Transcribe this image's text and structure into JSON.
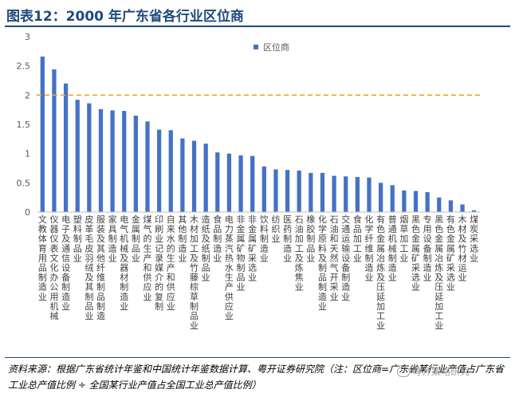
{
  "figure": {
    "title": "图表12：2000 年广东省各行业区位商",
    "source_note": "资料来源：根据广东省统计年鉴和中国统计年鉴数据计算、粤开证券研究院（注：区位商=广东省某行业产值占广东省工业总产值比例 ÷ 全国某行业产值占全国工业总产值比例）",
    "watermark": "粤开策略研究"
  },
  "colors": {
    "bar": "#4472c4",
    "reference_line": "#f0a030",
    "title": "#1f497d",
    "axis_text": "#595959"
  },
  "icons": {
    "watermark": "wechat-icon"
  },
  "chart_data": {
    "type": "bar",
    "title": "",
    "xlabel": "",
    "ylabel": "",
    "ylim": [
      0,
      3
    ],
    "yticks": [
      "0",
      "0.5",
      "1",
      "1.5",
      "2",
      "2.5",
      "3"
    ],
    "grid": false,
    "legend": "top-right",
    "reference_line": {
      "y": 2,
      "style": "dashed"
    },
    "categories": [
      "文教体育用品制造业",
      "仪器仪表文化办公用机械",
      "电子及通信设备制造业",
      "塑料制品业",
      "皮革毛皮羽绒及其制品业",
      "服装及其他纤维制品制造",
      "家具制造业",
      "电气机械及器材制造业",
      "金属制品业",
      "煤气的生产和供应业",
      "印刷业记录媒介的复制",
      "自来水的生产和供应业",
      "其他制造业",
      "木材加工及竹藤棕草制品业",
      "造纸及纸制品业",
      "食品制造业",
      "电力蒸汽热水生产供应业",
      "非金属矿物制品业",
      "非金属矿采选业",
      "饮料制造业",
      "纺织业",
      "医药制造业",
      "石油加工及炼焦业",
      "橡胶制品业",
      "化学原料及制品制造业",
      "石油和天然气开采业",
      "交通运输设备制造业",
      "食品加工业",
      "化学纤维制造业",
      "有色金属冶炼及压延加工业",
      "普通机械制造业",
      "烟草加工业",
      "黑色金属矿采选业",
      "专用设备制造业",
      "黑色金属冶炼及压延加工业",
      "有色金属矿采选业",
      "木材及竹材运业",
      "煤炭采选业"
    ],
    "series": [
      {
        "name": "区位商",
        "values": [
          2.66,
          2.44,
          2.2,
          1.92,
          1.86,
          1.76,
          1.74,
          1.73,
          1.65,
          1.55,
          1.41,
          1.4,
          1.26,
          1.22,
          1.17,
          1.02,
          1.0,
          0.97,
          0.96,
          0.78,
          0.73,
          0.72,
          0.71,
          0.67,
          0.67,
          0.62,
          0.61,
          0.6,
          0.59,
          0.5,
          0.46,
          0.37,
          0.36,
          0.34,
          0.25,
          0.2,
          0.13,
          0.03
        ]
      }
    ]
  }
}
